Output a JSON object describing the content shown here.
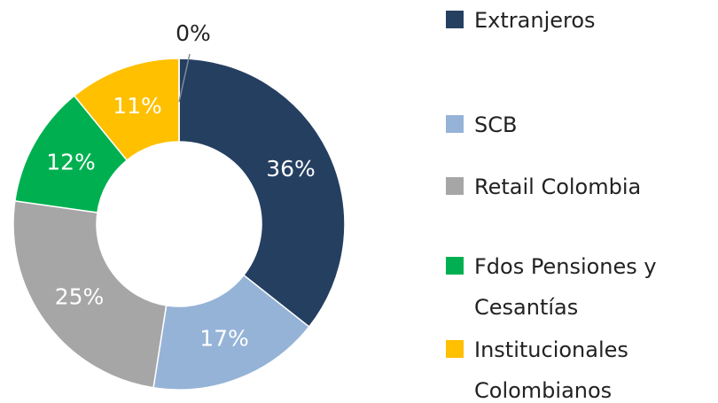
{
  "chart_data": {
    "type": "donut",
    "categories": [
      "Extranjeros",
      "SCB",
      "Retail Colombia",
      "Fdos Pensiones y Cesantías",
      "Institucionales Colombianos",
      null
    ],
    "values": [
      36,
      17,
      25,
      12,
      11,
      0
    ],
    "value_labels": [
      "36%",
      "17%",
      "25%",
      "12%",
      "11%",
      "0%"
    ],
    "colors": [
      "#253f61",
      "#95b3d7",
      "#a6a6a6",
      "#00b050",
      "#ffc000",
      "#7f7f7f"
    ],
    "legend": "right"
  }
}
